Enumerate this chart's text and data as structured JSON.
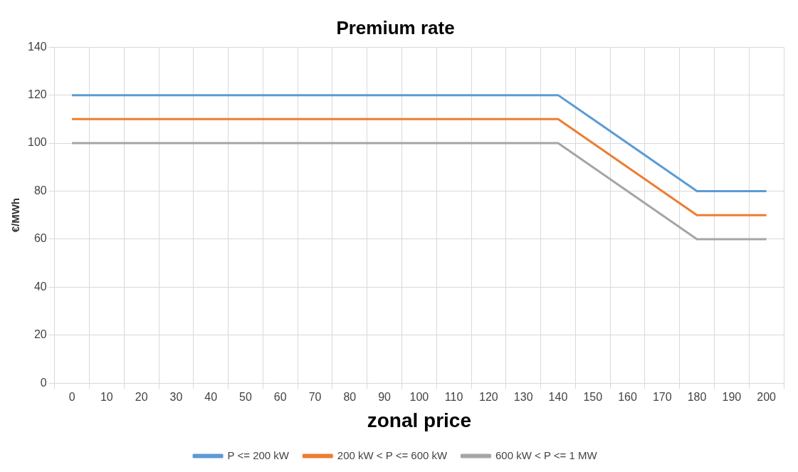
{
  "chart_data": {
    "type": "line",
    "title": "Premium rate",
    "xlabel": "zonal price",
    "ylabel": "€/MWh",
    "categories": [
      "0",
      "10",
      "20",
      "30",
      "40",
      "50",
      "60",
      "70",
      "80",
      "90",
      "100",
      "110",
      "120",
      "130",
      "140",
      "150",
      "160",
      "170",
      "180",
      "190",
      "200"
    ],
    "series": [
      {
        "name": "P <= 200 kW",
        "color": "#5b9bd5",
        "values": [
          120,
          120,
          120,
          120,
          120,
          120,
          120,
          120,
          120,
          120,
          120,
          120,
          120,
          120,
          120,
          110,
          100,
          90,
          80,
          80,
          80
        ]
      },
      {
        "name": "200 kW < P <= 600 kW",
        "color": "#ed7d31",
        "values": [
          110,
          110,
          110,
          110,
          110,
          110,
          110,
          110,
          110,
          110,
          110,
          110,
          110,
          110,
          110,
          100,
          90,
          80,
          70,
          70,
          70
        ]
      },
      {
        "name": "600 kW < P <= 1 MW",
        "color": "#a5a5a5",
        "values": [
          100,
          100,
          100,
          100,
          100,
          100,
          100,
          100,
          100,
          100,
          100,
          100,
          100,
          100,
          100,
          90,
          80,
          70,
          60,
          60,
          60
        ]
      }
    ],
    "ylim": [
      0,
      140
    ],
    "yticks": [
      0,
      20,
      40,
      60,
      80,
      100,
      120,
      140
    ],
    "grid": true,
    "legend": "bottom",
    "marker": "none",
    "line_style": "solid"
  }
}
